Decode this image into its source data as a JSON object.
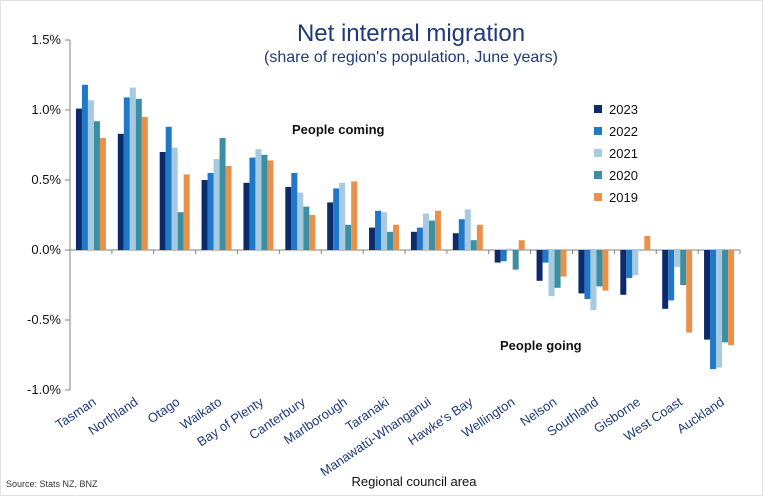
{
  "chart_data": {
    "type": "bar",
    "title": "Net internal migration",
    "subtitle": "(share of region's population, June years)",
    "xlabel": "Regional council area",
    "ylabel": "",
    "ylim": [
      -1.0,
      1.5
    ],
    "yticks": [
      "1.5%",
      "1.0%",
      "0.5%",
      "0.0%",
      "-0.5%",
      "-1.0%"
    ],
    "ytick_values": [
      1.5,
      1.0,
      0.5,
      0.0,
      -0.5,
      -1.0
    ],
    "categories": [
      "Tasman",
      "Northland",
      "Otago",
      "Waikato",
      "Bay of Plenty",
      "Canterbury",
      "Marlborough",
      "Taranaki",
      "Manawatū-Whanganui",
      "Hawke's Bay",
      "Wellington",
      "Nelson",
      "Southland",
      "Gisborne",
      "West Coast",
      "Auckland"
    ],
    "series": [
      {
        "name": "2023",
        "color": "#0d2a6b",
        "values": [
          1.01,
          0.83,
          0.7,
          0.5,
          0.48,
          0.45,
          0.34,
          0.16,
          0.13,
          0.12,
          -0.09,
          -0.22,
          -0.31,
          -0.32,
          -0.42,
          -0.64
        ]
      },
      {
        "name": "2022",
        "color": "#1f78c8",
        "values": [
          1.18,
          1.09,
          0.88,
          0.55,
          0.66,
          0.55,
          0.44,
          0.28,
          0.16,
          0.22,
          -0.08,
          -0.09,
          -0.35,
          -0.2,
          -0.36,
          -0.85
        ]
      },
      {
        "name": "2021",
        "color": "#a6cbe0",
        "values": [
          1.07,
          1.16,
          0.73,
          0.65,
          0.72,
          0.41,
          0.48,
          0.27,
          0.26,
          0.29,
          0.01,
          -0.33,
          -0.43,
          -0.18,
          -0.12,
          -0.84
        ]
      },
      {
        "name": "2020",
        "color": "#3c8fa3",
        "values": [
          0.92,
          1.08,
          0.27,
          0.8,
          0.68,
          0.31,
          0.18,
          0.13,
          0.21,
          0.07,
          -0.14,
          -0.27,
          -0.26,
          0.0,
          -0.25,
          -0.66
        ]
      },
      {
        "name": "2019",
        "color": "#e8914a",
        "values": [
          0.8,
          0.95,
          0.54,
          0.6,
          0.64,
          0.25,
          0.49,
          0.18,
          0.28,
          0.18,
          0.07,
          -0.19,
          -0.29,
          0.1,
          -0.59,
          -0.68
        ]
      }
    ],
    "legend_position": "right",
    "grid": false,
    "annotations": [
      "People coming",
      "People going"
    ],
    "source": "Source: Stats NZ, BNZ"
  }
}
